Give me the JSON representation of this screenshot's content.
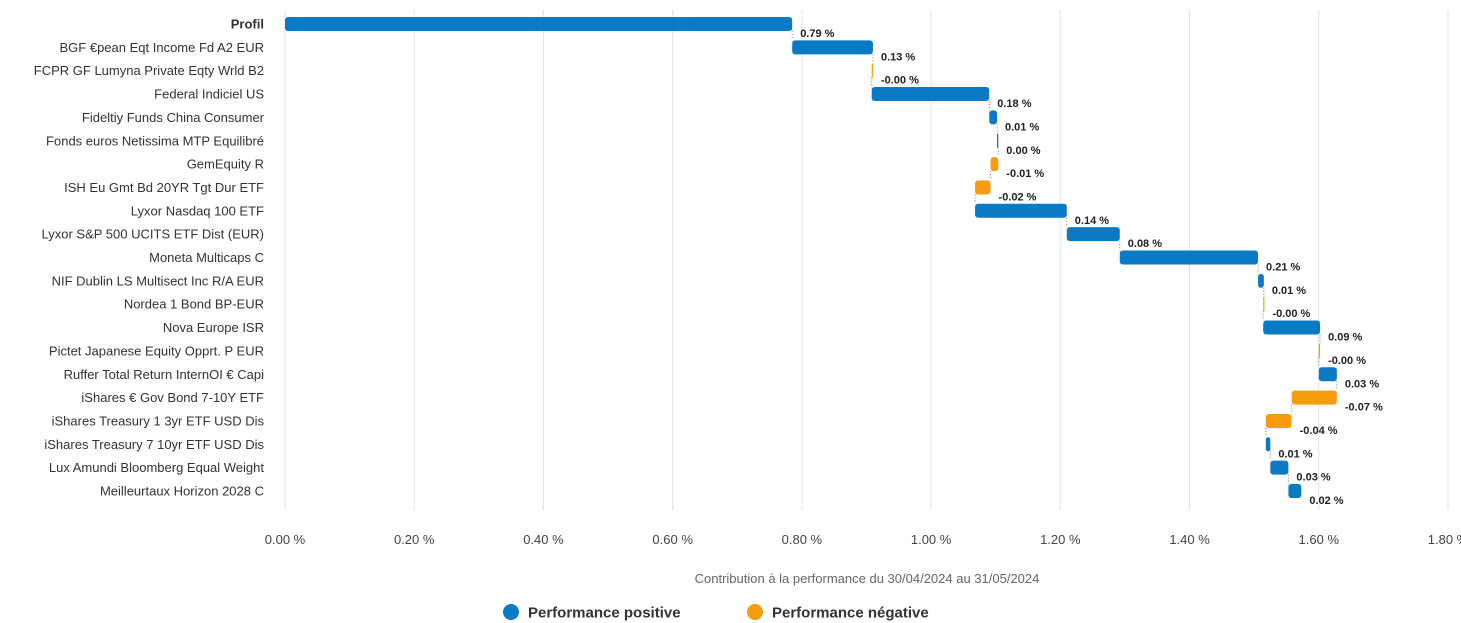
{
  "chart_data": {
    "type": "bar",
    "subtype": "waterfall-horizontal",
    "xlabel": "Contribution à la performance du 30/04/2024 au 31/05/2024",
    "xlim": [
      0,
      1.8
    ],
    "xticks": [
      0,
      0.2,
      0.4,
      0.6,
      0.8,
      1.0,
      1.2,
      1.4,
      1.6,
      1.8
    ],
    "xtick_labels": [
      "0.00 %",
      "0.20 %",
      "0.40 %",
      "0.60 %",
      "0.80 %",
      "1.00 %",
      "1.20 %",
      "1.40 %",
      "1.60 %",
      "1.80 %"
    ],
    "grid": true,
    "legend_position": "bottom",
    "colors": {
      "positive": "#0a7ac4",
      "negative": "#f79c0f"
    },
    "legend": [
      {
        "label": "Performance positive",
        "color": "#0a7ac4"
      },
      {
        "label": "Performance négative",
        "color": "#f79c0f"
      }
    ],
    "rows": [
      {
        "category": "Profil",
        "start": 0,
        "end": 0.785,
        "sign": "positive",
        "label": "0.79 %"
      },
      {
        "category": "BGF €pean Eqt Income Fd A2 EUR",
        "start": 0.785,
        "end": 0.91,
        "sign": "positive",
        "label": "0.13 %"
      },
      {
        "category": "FCPR GF Lumyna Private Eqty Wrld B2",
        "start": 0.91,
        "end": 0.908,
        "sign": "negative",
        "label": "-0.00 %"
      },
      {
        "category": "Federal Indiciel US",
        "start": 0.908,
        "end": 1.09,
        "sign": "positive",
        "label": "0.18 %"
      },
      {
        "category": "Fideltiy Funds China Consumer",
        "start": 1.09,
        "end": 1.102,
        "sign": "positive",
        "label": "0.01 %"
      },
      {
        "category": "Fonds euros Netissima MTP Equilibré",
        "start": 1.102,
        "end": 1.104,
        "sign": "positive",
        "label": "0.00 %"
      },
      {
        "category": "GemEquity R",
        "start": 1.104,
        "end": 1.092,
        "sign": "negative",
        "label": "-0.01 %"
      },
      {
        "category": "ISH Eu Gmt Bd 20YR Tgt Dur ETF",
        "start": 1.092,
        "end": 1.068,
        "sign": "negative",
        "label": "-0.02 %"
      },
      {
        "category": "Lyxor Nasdaq 100 ETF",
        "start": 1.068,
        "end": 1.21,
        "sign": "positive",
        "label": "0.14 %"
      },
      {
        "category": "Lyxor S&P 500 UCITS ETF Dist (EUR)",
        "start": 1.21,
        "end": 1.292,
        "sign": "positive",
        "label": "0.08 %"
      },
      {
        "category": "Moneta Multicaps C",
        "start": 1.292,
        "end": 1.506,
        "sign": "positive",
        "label": "0.21 %"
      },
      {
        "category": "NIF Dublin LS Multisect Inc R/A EUR",
        "start": 1.506,
        "end": 1.515,
        "sign": "positive",
        "label": "0.01 %"
      },
      {
        "category": "Nordea 1 Bond BP-EUR",
        "start": 1.515,
        "end": 1.514,
        "sign": "negative",
        "label": "-0.00 %"
      },
      {
        "category": "Nova Europe ISR",
        "start": 1.514,
        "end": 1.602,
        "sign": "positive",
        "label": "0.09 %"
      },
      {
        "category": "Pictet Japanese Equity Opprt. P EUR",
        "start": 1.602,
        "end": 1.6,
        "sign": "negative",
        "label": "-0.00 %"
      },
      {
        "category": "Ruffer Total Return InternOI € Capi",
        "start": 1.6,
        "end": 1.628,
        "sign": "positive",
        "label": "0.03 %"
      },
      {
        "category": "iShares € Gov Bond 7-10Y ETF",
        "start": 1.628,
        "end": 1.558,
        "sign": "negative",
        "label": "-0.07 %"
      },
      {
        "category": "iShares Treasury 1 3yr ETF USD Dis",
        "start": 1.558,
        "end": 1.518,
        "sign": "negative",
        "label": "-0.04 %"
      },
      {
        "category": "iShares Treasury 7 10yr ETF USD Dis",
        "start": 1.518,
        "end": 1.525,
        "sign": "positive",
        "label": "0.01 %"
      },
      {
        "category": "Lux Amundi Bloomberg Equal Weight",
        "start": 1.525,
        "end": 1.553,
        "sign": "positive",
        "label": "0.03 %"
      },
      {
        "category": "Meilleurtaux Horizon 2028 C",
        "start": 1.553,
        "end": 1.573,
        "sign": "positive",
        "label": "0.02 %"
      }
    ]
  }
}
